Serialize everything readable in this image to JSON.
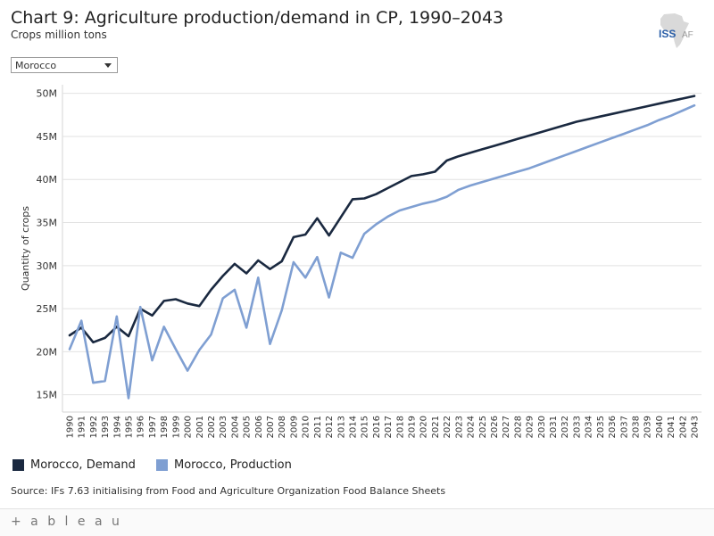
{
  "header": {
    "title": "Chart 9: Agriculture production/demand in CP, 1990–2043",
    "subtitle": "Crops million tons",
    "logo_text": "ISS",
    "logo_suffix": "AF"
  },
  "filter": {
    "selected": "Morocco"
  },
  "legend": {
    "items": [
      {
        "label": "Morocco, Demand",
        "color": "#1a2940"
      },
      {
        "label": "Morocco, Production",
        "color": "#7f9fd2"
      }
    ]
  },
  "source": "Source: IFs 7.63 initialising from Food and Agriculture Organization Food Balance Sheets",
  "footer": {
    "brand": "+ a b l e a u"
  },
  "chart_data": {
    "type": "line",
    "ylabel": "Quantity of crops",
    "ylim": [
      13,
      51
    ],
    "yticks": [
      15,
      20,
      25,
      30,
      35,
      40,
      45,
      50
    ],
    "ytick_labels": [
      "15M",
      "20M",
      "25M",
      "30M",
      "35M",
      "40M",
      "45M",
      "50M"
    ],
    "x": [
      1990,
      1991,
      1992,
      1993,
      1994,
      1995,
      1996,
      1997,
      1998,
      1999,
      2000,
      2001,
      2002,
      2003,
      2004,
      2005,
      2006,
      2007,
      2008,
      2009,
      2010,
      2011,
      2012,
      2013,
      2014,
      2015,
      2016,
      2017,
      2018,
      2019,
      2020,
      2021,
      2022,
      2023,
      2024,
      2025,
      2026,
      2027,
      2028,
      2029,
      2030,
      2031,
      2032,
      2033,
      2034,
      2035,
      2036,
      2037,
      2038,
      2039,
      2040,
      2041,
      2042,
      2043
    ],
    "series": [
      {
        "name": "Morocco, Demand",
        "color": "#1a2940",
        "values": [
          21.9,
          22.8,
          21.1,
          21.6,
          22.9,
          21.8,
          25.0,
          24.2,
          25.9,
          26.1,
          25.6,
          25.3,
          27.2,
          28.8,
          30.2,
          29.1,
          30.6,
          29.6,
          30.5,
          33.3,
          33.6,
          35.5,
          33.5,
          35.6,
          37.7,
          37.8,
          38.3,
          39.0,
          39.7,
          40.4,
          40.6,
          40.9,
          42.2,
          42.7,
          43.1,
          43.5,
          43.9,
          44.3,
          44.7,
          45.1,
          45.5,
          45.9,
          46.3,
          46.7,
          47.0,
          47.3,
          47.6,
          47.9,
          48.2,
          48.5,
          48.8,
          49.1,
          49.4,
          49.7
        ]
      },
      {
        "name": "Morocco, Production",
        "color": "#7f9fd2",
        "values": [
          20.3,
          23.6,
          16.4,
          16.6,
          24.1,
          14.6,
          25.2,
          19.0,
          22.9,
          20.3,
          17.8,
          20.2,
          22.0,
          26.2,
          27.2,
          22.8,
          28.6,
          20.9,
          24.8,
          30.4,
          28.6,
          31.0,
          26.3,
          31.5,
          30.9,
          33.7,
          34.8,
          35.7,
          36.4,
          36.8,
          37.2,
          37.5,
          38.0,
          38.8,
          39.3,
          39.7,
          40.1,
          40.5,
          40.9,
          41.3,
          41.8,
          42.3,
          42.8,
          43.3,
          43.8,
          44.3,
          44.8,
          45.3,
          45.8,
          46.3,
          46.9,
          47.4,
          48.0,
          48.6
        ]
      }
    ],
    "grid": true,
    "legend_position": "bottom-left"
  }
}
